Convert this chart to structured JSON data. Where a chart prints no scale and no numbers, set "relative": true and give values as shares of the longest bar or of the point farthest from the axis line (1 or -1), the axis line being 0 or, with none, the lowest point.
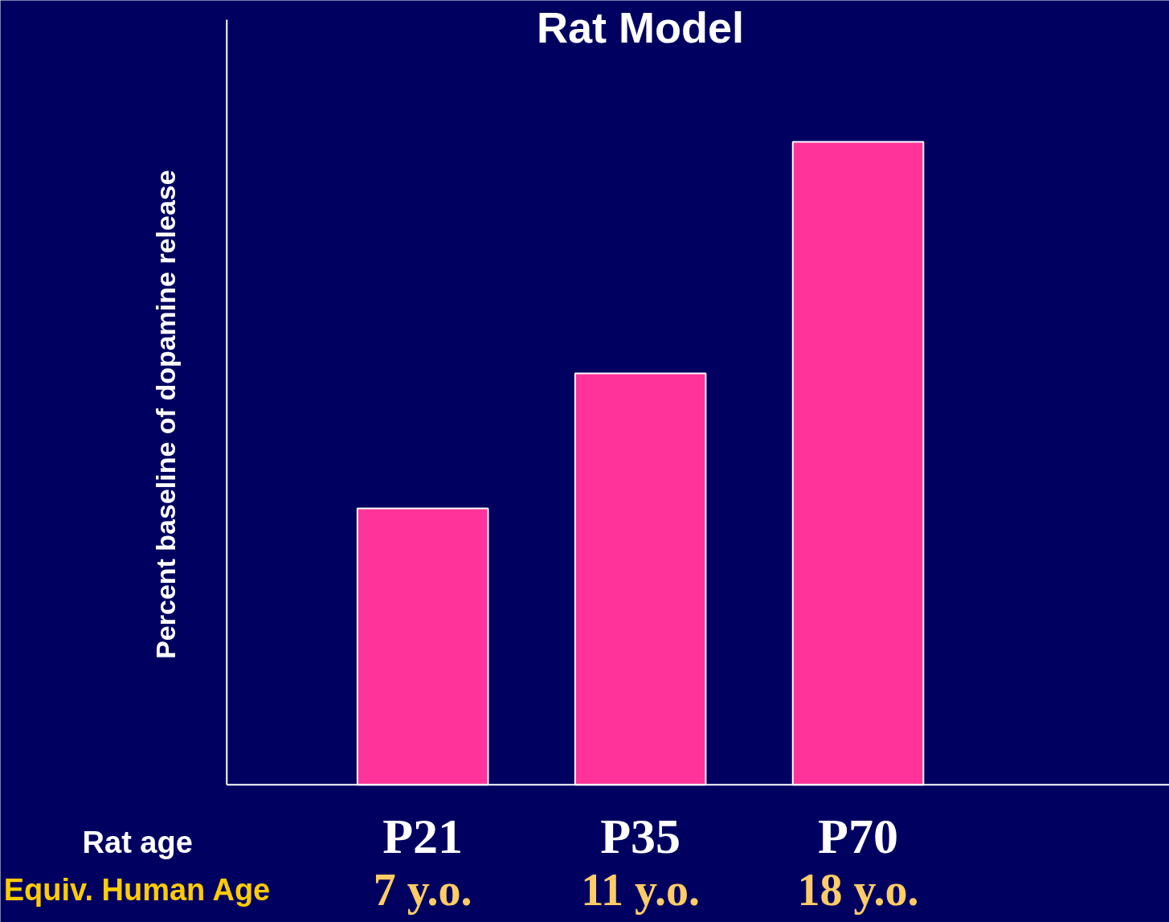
{
  "chart_data": {
    "type": "bar",
    "title": "Rat Model",
    "ylabel": "Percent baseline of dopamine release",
    "categories": [
      "P21",
      "P35",
      "P70"
    ],
    "values": [
      0.43,
      0.64,
      1
    ],
    "color": "#ff3399",
    "relative": true,
    "annotations": [
      "Rat age",
      "Equiv. Human Age",
      "7 y.o.",
      "11 y.o.",
      "18 y.o."
    ]
  }
}
